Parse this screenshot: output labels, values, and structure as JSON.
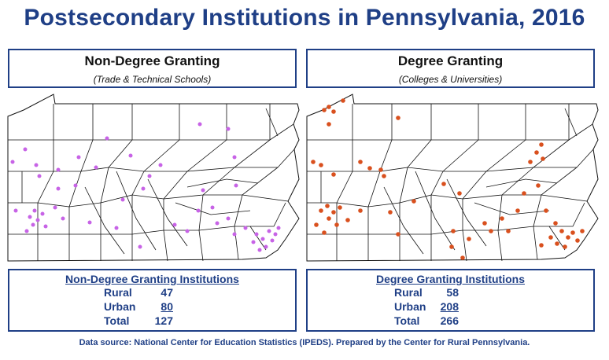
{
  "title": "Postsecondary Institutions in Pennsylvania, 2016",
  "panels": [
    {
      "heading": "Non-Degree Granting",
      "subheading": "(Trade & Technical Schools)",
      "dot_color": "#c763e6",
      "stats_title": "Non-Degree Granting Institutions",
      "rows": [
        {
          "label": "Rural",
          "value": "47"
        },
        {
          "label": "Urban",
          "value": "80"
        },
        {
          "label": "Total",
          "value": "127"
        }
      ]
    },
    {
      "heading": "Degree Granting",
      "subheading": "(Colleges & Universities)",
      "dot_color": "#d9501e",
      "stats_title": "Degree Granting Institutions",
      "rows": [
        {
          "label": "Rural",
          "value": "58"
        },
        {
          "label": "Urban",
          "value": "208"
        },
        {
          "label": "Total",
          "value": "266"
        }
      ]
    }
  ],
  "source": "Data source: National Center for Education Statistics (IPEDS). Prepared by the Center for Rural Pennsylvania."
}
